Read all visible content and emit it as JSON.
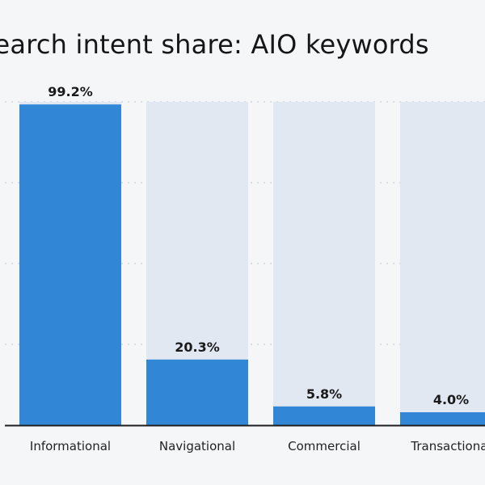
{
  "chart_data": {
    "type": "bar",
    "title": "Search intent share: AIO keywords",
    "categories": [
      "Informational",
      "Navigational",
      "Commercial",
      "Transactional"
    ],
    "values": [
      99.2,
      20.3,
      5.8,
      4.0
    ],
    "value_labels": [
      "99.2%",
      "20.3%",
      "5.8%",
      "4.0%"
    ],
    "ylim": [
      0,
      100
    ],
    "grid": true,
    "colors": {
      "bar": "#3186d6",
      "track": "#e2e8f2",
      "grid": "#c8ccd3",
      "axis": "#1f1f1f"
    }
  }
}
